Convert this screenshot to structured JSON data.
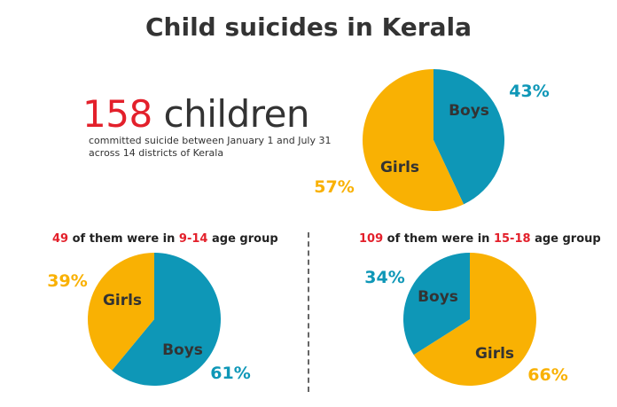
{
  "title": "Child suicides in Kerala",
  "headline": {
    "number": "158",
    "text": "children"
  },
  "subtitle": "committed suicide between January 1 and July 31 across 14 districts of Kerala",
  "colors": {
    "boys": "#0e97b7",
    "girls": "#f9b103",
    "accent": "#e3202b"
  },
  "groups": [
    {
      "count": "49",
      "mid1": " of them were in ",
      "range": "9-14",
      "mid2": " age group"
    },
    {
      "count": "109",
      "mid1": " of them were in ",
      "range": "15-18",
      "mid2": " age group"
    }
  ],
  "chart_data": [
    {
      "type": "pie",
      "categories": [
        "Boys",
        "Girls"
      ],
      "values": [
        43,
        57
      ],
      "labels": [
        "43%",
        "57%"
      ]
    },
    {
      "type": "pie",
      "categories": [
        "Boys",
        "Girls"
      ],
      "values": [
        61,
        39
      ],
      "labels": [
        "61%",
        "39%"
      ]
    },
    {
      "type": "pie",
      "categories": [
        "Girls",
        "Boys"
      ],
      "values": [
        66,
        34
      ],
      "labels": [
        "66%",
        "34%"
      ]
    }
  ]
}
